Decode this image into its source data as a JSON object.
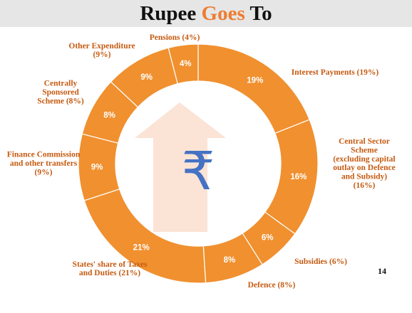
{
  "title": {
    "part1": "Rupee ",
    "accent": "Goes",
    "part2": " To"
  },
  "page_number": "14",
  "colors": {
    "ring": "#f0902f",
    "divider": "#ffffff",
    "label": "#c55a11",
    "arrow": "#fbe3d5",
    "rupee": "#4472c4",
    "title_accent": "#ed7d31",
    "title_bg": "#e6e6e6"
  },
  "center_icon": "rupee-symbol",
  "center_glyph": "₹",
  "chart_data": {
    "type": "pie",
    "values": [
      19,
      16,
      6,
      8,
      21,
      9,
      8,
      9,
      4
    ],
    "slice_labels": [
      "19%",
      "16%",
      "6%",
      "8%",
      "21%",
      "9%",
      "8%",
      "9%",
      "4%"
    ],
    "categories": [
      [
        "Interest Payments (19%)"
      ],
      [
        "Central Sector",
        "Scheme",
        "(excluding capital",
        "outlay on Defence",
        "and Subsidy)",
        "(16%)"
      ],
      [
        "Subsidies (6%)"
      ],
      [
        "Defence (8%)"
      ],
      [
        "States' share of Taxes",
        "and Duties (21%)"
      ],
      [
        "Finance Commission",
        "and other transfers",
        "(9%)"
      ],
      [
        "Centrally",
        "Sponsored",
        "Scheme (8%)"
      ],
      [
        "Other Expenditure",
        "(9%)"
      ],
      [
        "Pensions (4%)"
      ]
    ]
  }
}
